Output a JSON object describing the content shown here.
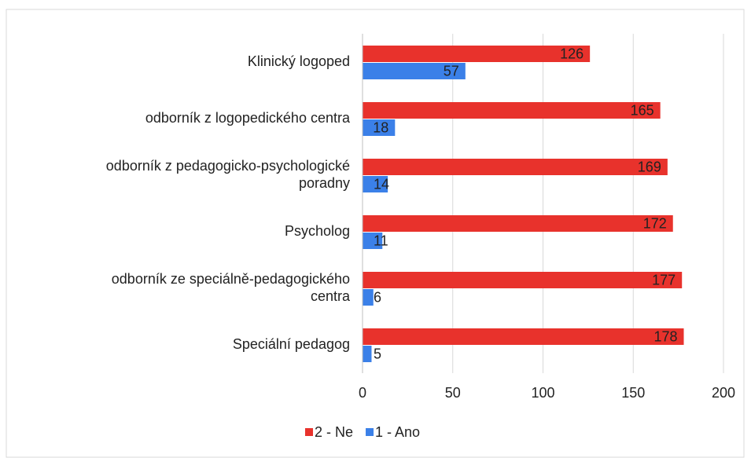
{
  "chart_data": {
    "type": "bar",
    "orientation": "horizontal",
    "categories": [
      "Klinický logoped",
      "odborník z logopedického centra",
      "odborník z pedagogicko-psychologické poradny",
      "Psycholog",
      "odborník ze speciálně-pedagogického centra",
      "Speciální pedagog"
    ],
    "series": [
      {
        "name": "2 - Ne",
        "color": "#e8322c",
        "values": [
          126,
          165,
          169,
          172,
          177,
          178
        ]
      },
      {
        "name": "1 - Ano",
        "color": "#3b80e8",
        "values": [
          57,
          18,
          14,
          11,
          6,
          5
        ]
      }
    ],
    "xlim": [
      0,
      200
    ],
    "xticks": [
      0,
      50,
      100,
      150,
      200
    ],
    "grid": true,
    "legend": "bottom"
  }
}
